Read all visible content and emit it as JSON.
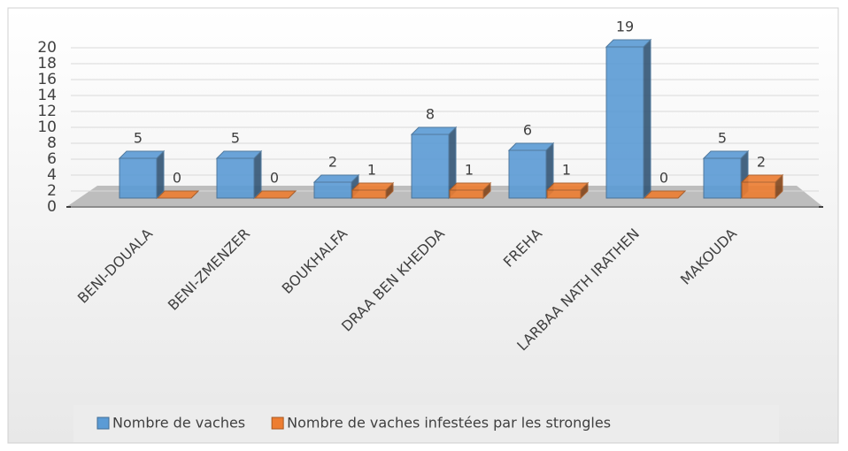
{
  "chart_data": {
    "type": "bar3d",
    "categories": [
      "BENI-DOUALA",
      "BENI-ZMENZER",
      "BOUKHALFA",
      "DRAA BEN KHEDDA",
      "FREHA",
      "LARBAA NATH  IRATHEN",
      "MAKOUDA"
    ],
    "series": [
      {
        "name": "Nombre de vaches",
        "color": "#5b9bd5",
        "values": [
          5,
          5,
          2,
          8,
          6,
          19,
          5
        ]
      },
      {
        "name": "Nombre de vaches infestées par les strongles",
        "color": "#ed7d31",
        "values": [
          0,
          0,
          1,
          1,
          1,
          0,
          2
        ]
      }
    ],
    "ylim": [
      0,
      20
    ],
    "yticks": [
      0,
      2,
      4,
      6,
      8,
      10,
      12,
      14,
      16,
      18,
      20
    ],
    "grid": true,
    "legend": "bottom"
  }
}
